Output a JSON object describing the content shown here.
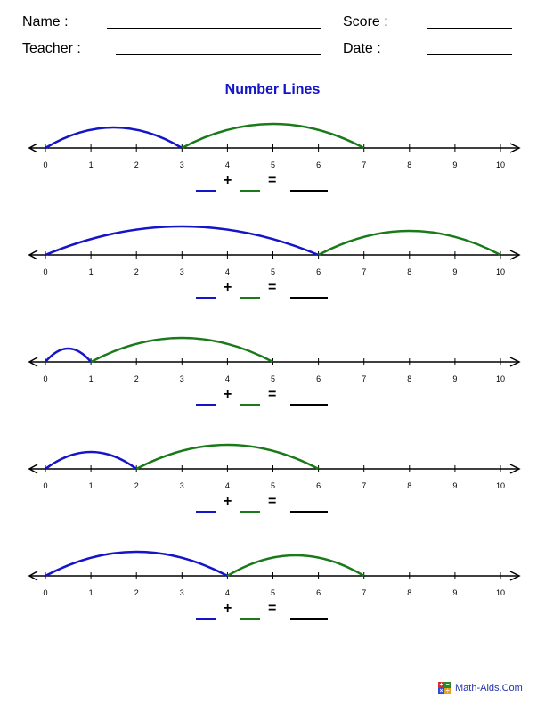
{
  "header": {
    "name_label": "Name :",
    "teacher_label": "Teacher :",
    "score_label": "Score :",
    "date_label": "Date :"
  },
  "title": "Number Lines",
  "colors": {
    "first_hop": "#1414c8",
    "second_hop": "#1a7a1a",
    "title": "#1414c8"
  },
  "number_line": {
    "min": 0,
    "max": 10,
    "ticks": [
      "0",
      "1",
      "2",
      "3",
      "4",
      "5",
      "6",
      "7",
      "8",
      "9",
      "10"
    ]
  },
  "equation": {
    "plus": "+",
    "equals": "="
  },
  "problems": [
    {
      "first_hop": 3,
      "second_hop": 4,
      "end": 7
    },
    {
      "first_hop": 6,
      "second_hop": 4,
      "end": 10
    },
    {
      "first_hop": 1,
      "second_hop": 4,
      "end": 5
    },
    {
      "first_hop": 2,
      "second_hop": 4,
      "end": 6
    },
    {
      "first_hop": 4,
      "second_hop": 3,
      "end": 7
    }
  ],
  "footer": {
    "logo_icon": "math-aids-logo-icon",
    "logo_letters": [
      "+",
      "−",
      "×",
      "÷"
    ],
    "text": "Math-Aids.Com"
  }
}
